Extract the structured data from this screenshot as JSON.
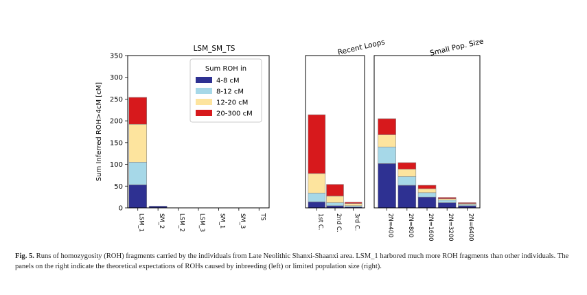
{
  "chart_data": [
    {
      "type": "bar",
      "stacked": true,
      "title": "LSM_SM_TS",
      "ylabel": "Sum Inferred ROH>4cM [cM]",
      "ylim": [
        0,
        350
      ],
      "yticks": [
        0,
        50,
        100,
        150,
        200,
        250,
        300,
        350
      ],
      "categories": [
        "LSM_1",
        "SM_2",
        "LSM_2",
        "LSM_3",
        "SM_1",
        "SM_3",
        "TS"
      ],
      "series": [
        {
          "name": "4-8 cM",
          "color": "#2e3192",
          "values": [
            53,
            4,
            0,
            0,
            0,
            0,
            0
          ]
        },
        {
          "name": "8-12 cM",
          "color": "#a6d8e8",
          "values": [
            52,
            0,
            0,
            0,
            0,
            0,
            0
          ]
        },
        {
          "name": "12-20 cM",
          "color": "#fde49e",
          "values": [
            87,
            0,
            0,
            0,
            0,
            0,
            0
          ]
        },
        {
          "name": "20-300 cM",
          "color": "#d7191c",
          "values": [
            62,
            0,
            0,
            0,
            0,
            0,
            0
          ]
        }
      ],
      "legend": {
        "title": "Sum ROH in",
        "position": "top-right"
      }
    },
    {
      "type": "bar",
      "stacked": true,
      "title": "Recent Loops",
      "ylim": [
        0,
        350
      ],
      "categories": [
        "1st C.",
        "2nd C.",
        "3rd C."
      ],
      "series": [
        {
          "name": "4-8 cM",
          "color": "#2e3192",
          "values": [
            14,
            5,
            2
          ]
        },
        {
          "name": "8-12 cM",
          "color": "#a6d8e8",
          "values": [
            20,
            7,
            3
          ]
        },
        {
          "name": "12-20 cM",
          "color": "#fde49e",
          "values": [
            45,
            15,
            5
          ]
        },
        {
          "name": "20-300 cM",
          "color": "#d7191c",
          "values": [
            135,
            27,
            3
          ]
        }
      ]
    },
    {
      "type": "bar",
      "stacked": true,
      "title": "Small Pop. Size",
      "ylim": [
        0,
        350
      ],
      "categories": [
        "2N=400",
        "2N=800",
        "2N=1600",
        "2N=3200",
        "2N=6400"
      ],
      "series": [
        {
          "name": "4-8 cM",
          "color": "#2e3192",
          "values": [
            102,
            52,
            25,
            12,
            5
          ]
        },
        {
          "name": "8-12 cM",
          "color": "#a6d8e8",
          "values": [
            38,
            20,
            10,
            6,
            3
          ]
        },
        {
          "name": "12-20 cM",
          "color": "#fde49e",
          "values": [
            28,
            17,
            9,
            3,
            2
          ]
        },
        {
          "name": "20-300 cM",
          "color": "#d7191c",
          "values": [
            37,
            15,
            8,
            3,
            2
          ]
        }
      ]
    }
  ],
  "caption": {
    "label": "Fig. 5.",
    "text": "Runs of homozygosity (ROH) fragments carried by the individuals from Late Neolithic Shanxi-Shaanxi area. LSM_1 harbored much more ROH fragments than other individuals. The panels on the right indicate the theoretical expectations of ROHs caused by inbreeding (left) or limited population size (right)."
  }
}
